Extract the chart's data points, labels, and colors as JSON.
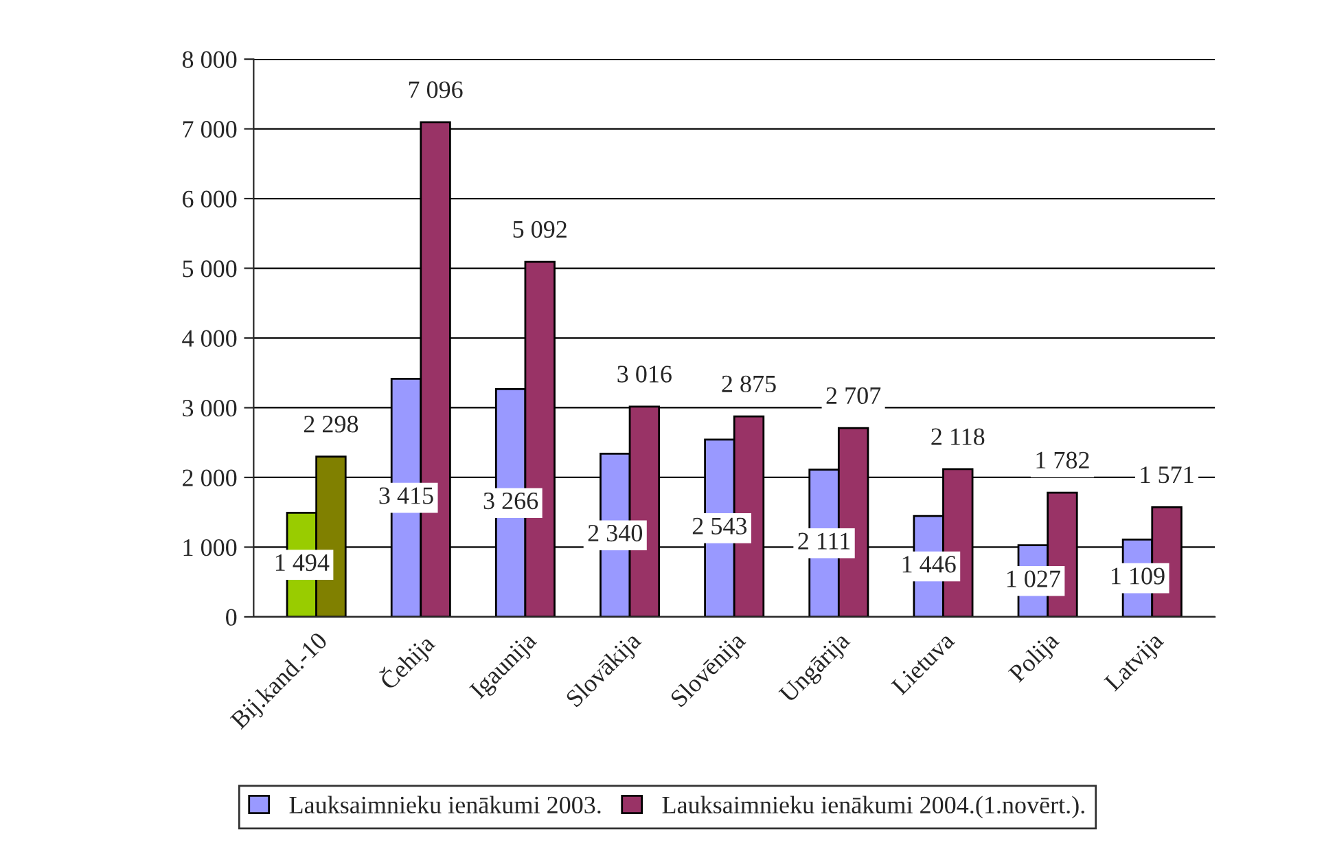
{
  "chart_data": {
    "type": "bar",
    "categories": [
      "Bij.kand.-10",
      "Čehija",
      "Igaunija",
      "Slovākija",
      "Slovēnija",
      "Ungārija",
      "Lietuva",
      "Polija",
      "Latvija"
    ],
    "series": [
      {
        "name": "Lauksaimnieku ienākumi 2003.",
        "color": "#9999ff",
        "colors": [
          "#99cc00",
          "#9999ff",
          "#9999ff",
          "#9999ff",
          "#9999ff",
          "#9999ff",
          "#9999ff",
          "#9999ff",
          "#9999ff"
        ],
        "values": [
          1494,
          3415,
          3266,
          2340,
          2543,
          2111,
          1446,
          1027,
          1109
        ],
        "value_labels": [
          "1 494",
          "3 415",
          "3 266",
          "2 340",
          "2 543",
          "2 111",
          "1 446",
          "1 027",
          "1 109"
        ]
      },
      {
        "name": "Lauksaimnieku ienākumi 2004.(1.novērt.).",
        "color": "#993366",
        "colors": [
          "#808000",
          "#993366",
          "#993366",
          "#993366",
          "#993366",
          "#993366",
          "#993366",
          "#993366",
          "#993366"
        ],
        "values": [
          2298,
          7096,
          5092,
          3016,
          2875,
          2707,
          2118,
          1782,
          1571
        ],
        "value_labels": [
          "2 298",
          "7 096",
          "5 092",
          "3 016",
          "2 875",
          "2 707",
          "2 118",
          "1 782",
          "1 571"
        ]
      }
    ],
    "ylim": [
      0,
      8000
    ],
    "yticks": [
      0,
      {
        "value": 1000,
        "label": "1 000"
      },
      {
        "value": 2000,
        "label": "2 000"
      },
      {
        "value": 3000,
        "label": "3 000"
      },
      {
        "value": 4000,
        "label": "4 000"
      },
      {
        "value": 5000,
        "label": "5 000"
      },
      {
        "value": 6000,
        "label": "6 000"
      },
      {
        "value": 7000,
        "label": "7 000"
      },
      {
        "value": 8000,
        "label": "8 000"
      }
    ],
    "grid": "y",
    "legend": "bottom"
  }
}
